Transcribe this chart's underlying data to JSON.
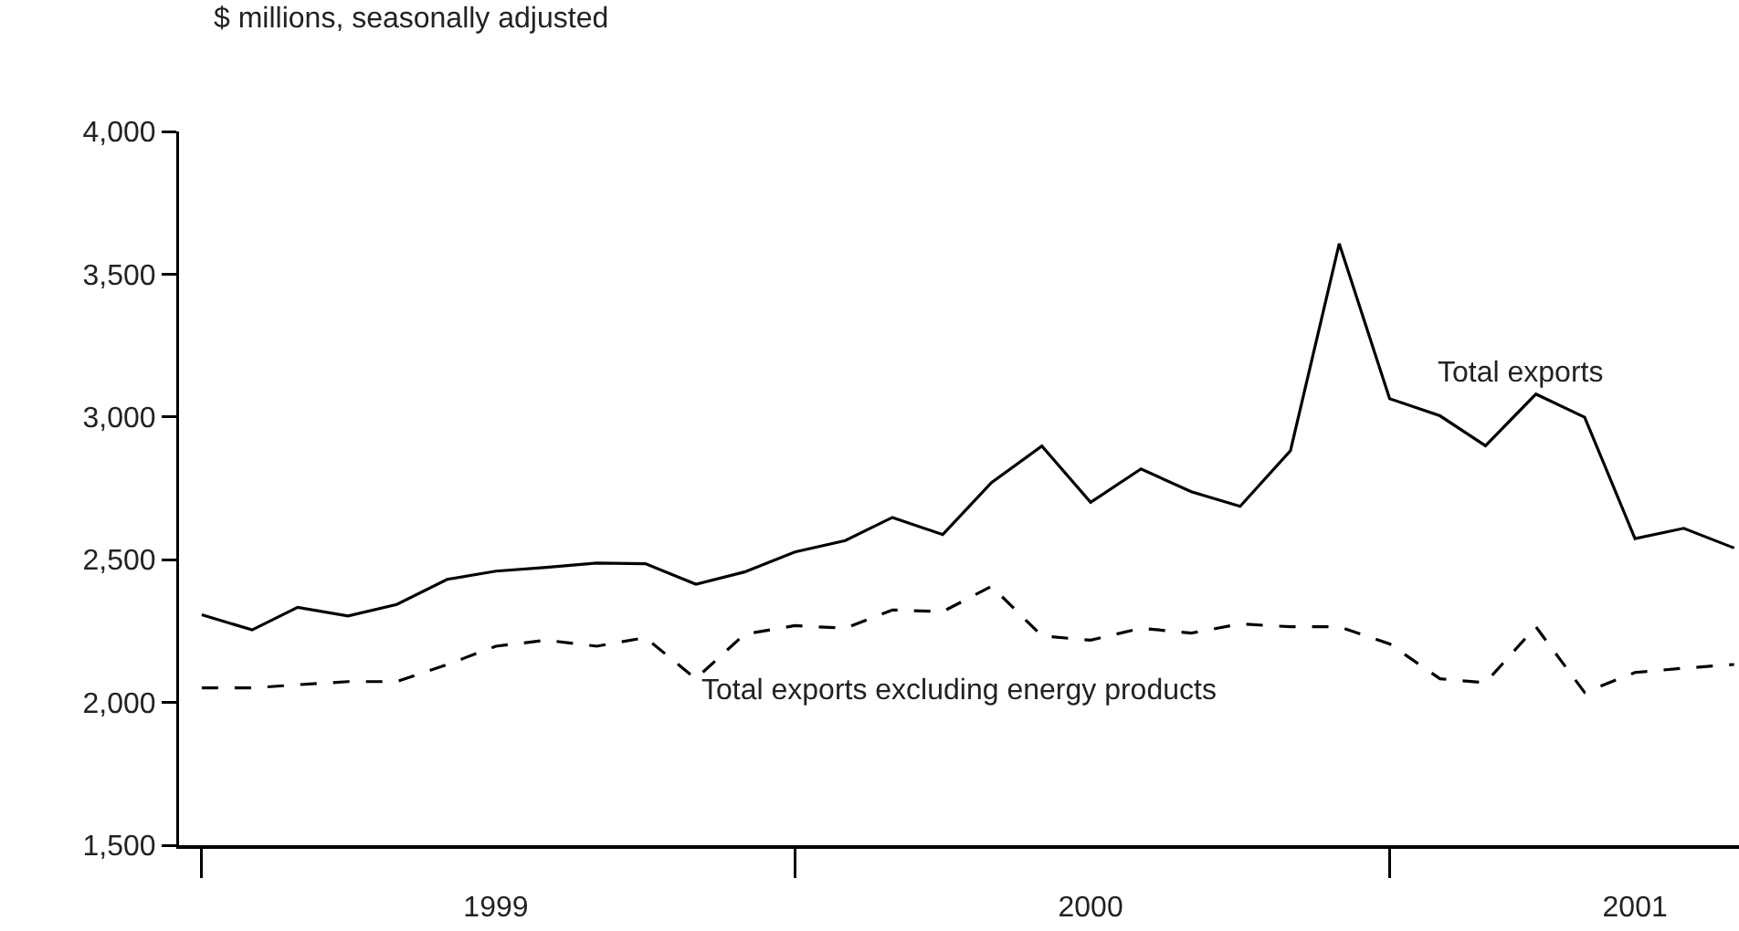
{
  "chart_data": {
    "type": "line",
    "ylabel": "$ millions, seasonally adjusted",
    "x": [
      "1999-01",
      "1999-02",
      "1999-03",
      "1999-04",
      "1999-05",
      "1999-06",
      "1999-07",
      "1999-08",
      "1999-09",
      "1999-10",
      "1999-11",
      "1999-12",
      "2000-01",
      "2000-02",
      "2000-03",
      "2000-04",
      "2000-05",
      "2000-06",
      "2000-07",
      "2000-08",
      "2000-09",
      "2000-10",
      "2000-11",
      "2000-12",
      "2001-01",
      "2001-02",
      "2001-03",
      "2001-04",
      "2001-05",
      "2001-06",
      "2001-07",
      "2001-08"
    ],
    "series": [
      {
        "name": "Total exports",
        "color": "#000000",
        "line_style": "solid",
        "values": [
          2307,
          2254,
          2333,
          2303,
          2343,
          2431,
          2460,
          2473,
          2488,
          2486,
          2414,
          2457,
          2527,
          2567,
          2648,
          2588,
          2770,
          2898,
          2701,
          2818,
          2738,
          2687,
          2882,
          3607,
          3064,
          3004,
          2899,
          3080,
          2999,
          2574,
          2610,
          2541
        ]
      },
      {
        "name": "Total exports excluding energy products",
        "color": "#000000",
        "line_style": "dashed",
        "values": [
          2051,
          2051,
          2062,
          2073,
          2073,
          2133,
          2197,
          2218,
          2197,
          2227,
          2083,
          2239,
          2269,
          2260,
          2324,
          2318,
          2407,
          2233,
          2218,
          2260,
          2243,
          2275,
          2265,
          2265,
          2205,
          2083,
          2069,
          2265,
          2035,
          2105,
          2120,
          2133
        ]
      }
    ],
    "xlim": [
      "1998-12-18",
      "2001-08-04"
    ],
    "xticks": [
      {
        "value": "1999-01-01",
        "label": null
      },
      {
        "value": "1999-07-01",
        "label": "1999"
      },
      {
        "value": "2000-01-01",
        "label": null
      },
      {
        "value": "2000-07-01",
        "label": "2000"
      },
      {
        "value": "2001-01-01",
        "label": null
      },
      {
        "value": "2001-06-01",
        "label": "2001"
      }
    ],
    "ylim": [
      1500,
      4000
    ],
    "yticks": [
      {
        "value": 1500,
        "label": "1,500"
      },
      {
        "value": 2000,
        "label": "2,000"
      },
      {
        "value": 2500,
        "label": "2,500"
      },
      {
        "value": 3000,
        "label": "3,000"
      },
      {
        "value": 3500,
        "label": "3,500"
      },
      {
        "value": 4000,
        "label": "4,000"
      }
    ],
    "grid": false,
    "legend": false,
    "marker": "none"
  }
}
